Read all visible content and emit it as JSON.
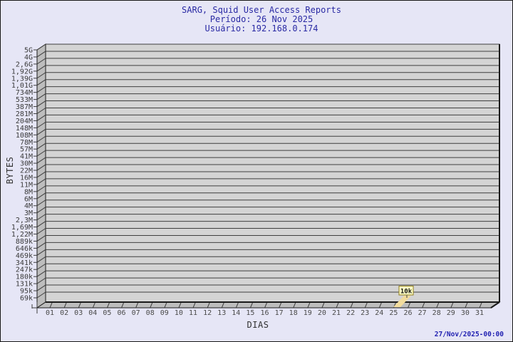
{
  "chart_data": {
    "type": "bar",
    "title": "SARG, Squid User Access Reports",
    "subtitle_period": "Período: 26 Nov 2025",
    "subtitle_user": "Usuário: 192.168.0.174",
    "xlabel": "DIAS",
    "ylabel": "BYTES",
    "y_scale": "log",
    "grid": "horizontal",
    "legend": "none",
    "y_tick_labels": [
      "5G",
      "4G",
      "2,6G",
      "1,92G",
      "1,39G",
      "1,01G",
      "734M",
      "533M",
      "387M",
      "281M",
      "204M",
      "148M",
      "108M",
      "78M",
      "57M",
      "41M",
      "30M",
      "22M",
      "16M",
      "11M",
      "8M",
      "6M",
      "4M",
      "3M",
      "2,3M",
      "1,69M",
      "1,22M",
      "889k",
      "646k",
      "469k",
      "341k",
      "247k",
      "180k",
      "131k",
      "95k",
      "69k"
    ],
    "x_tick_labels": [
      "01",
      "02",
      "03",
      "04",
      "05",
      "06",
      "07",
      "08",
      "09",
      "10",
      "11",
      "12",
      "13",
      "14",
      "15",
      "16",
      "17",
      "18",
      "19",
      "20",
      "21",
      "22",
      "23",
      "24",
      "25",
      "26",
      "27",
      "28",
      "29",
      "30",
      "31"
    ],
    "bars": [
      {
        "day": "26",
        "value_label": "10k"
      }
    ],
    "footer_timestamp": "27/Nov/2025-00:00"
  },
  "colors": {
    "background": "#e6e6f6",
    "frame_border": "#181818",
    "plot_face": "#d4d4d4",
    "plot_side": "#bdbdbd",
    "grid_line": "#3f3f3f",
    "frame_line": "#1a1a1a",
    "tick_text": "#3a3a3a",
    "title_blue": "#2a2aa4",
    "timestamp_blue": "#2222b2",
    "bar_fill": "#f2dc9d",
    "note_fill": "#ffffc4",
    "note_border": "#8f7d1e"
  }
}
